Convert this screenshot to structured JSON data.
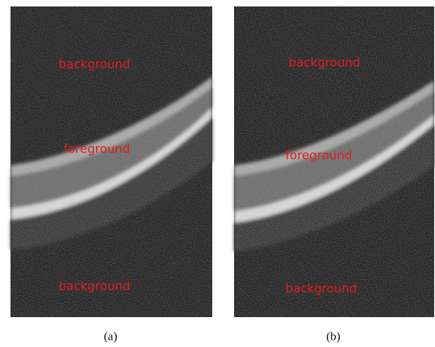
{
  "panels": [
    {
      "caption": "(a)",
      "labels": [
        "background",
        "foreground",
        "background"
      ]
    },
    {
      "caption": "(b)",
      "labels": [
        "background",
        "foreground",
        "background"
      ]
    }
  ]
}
